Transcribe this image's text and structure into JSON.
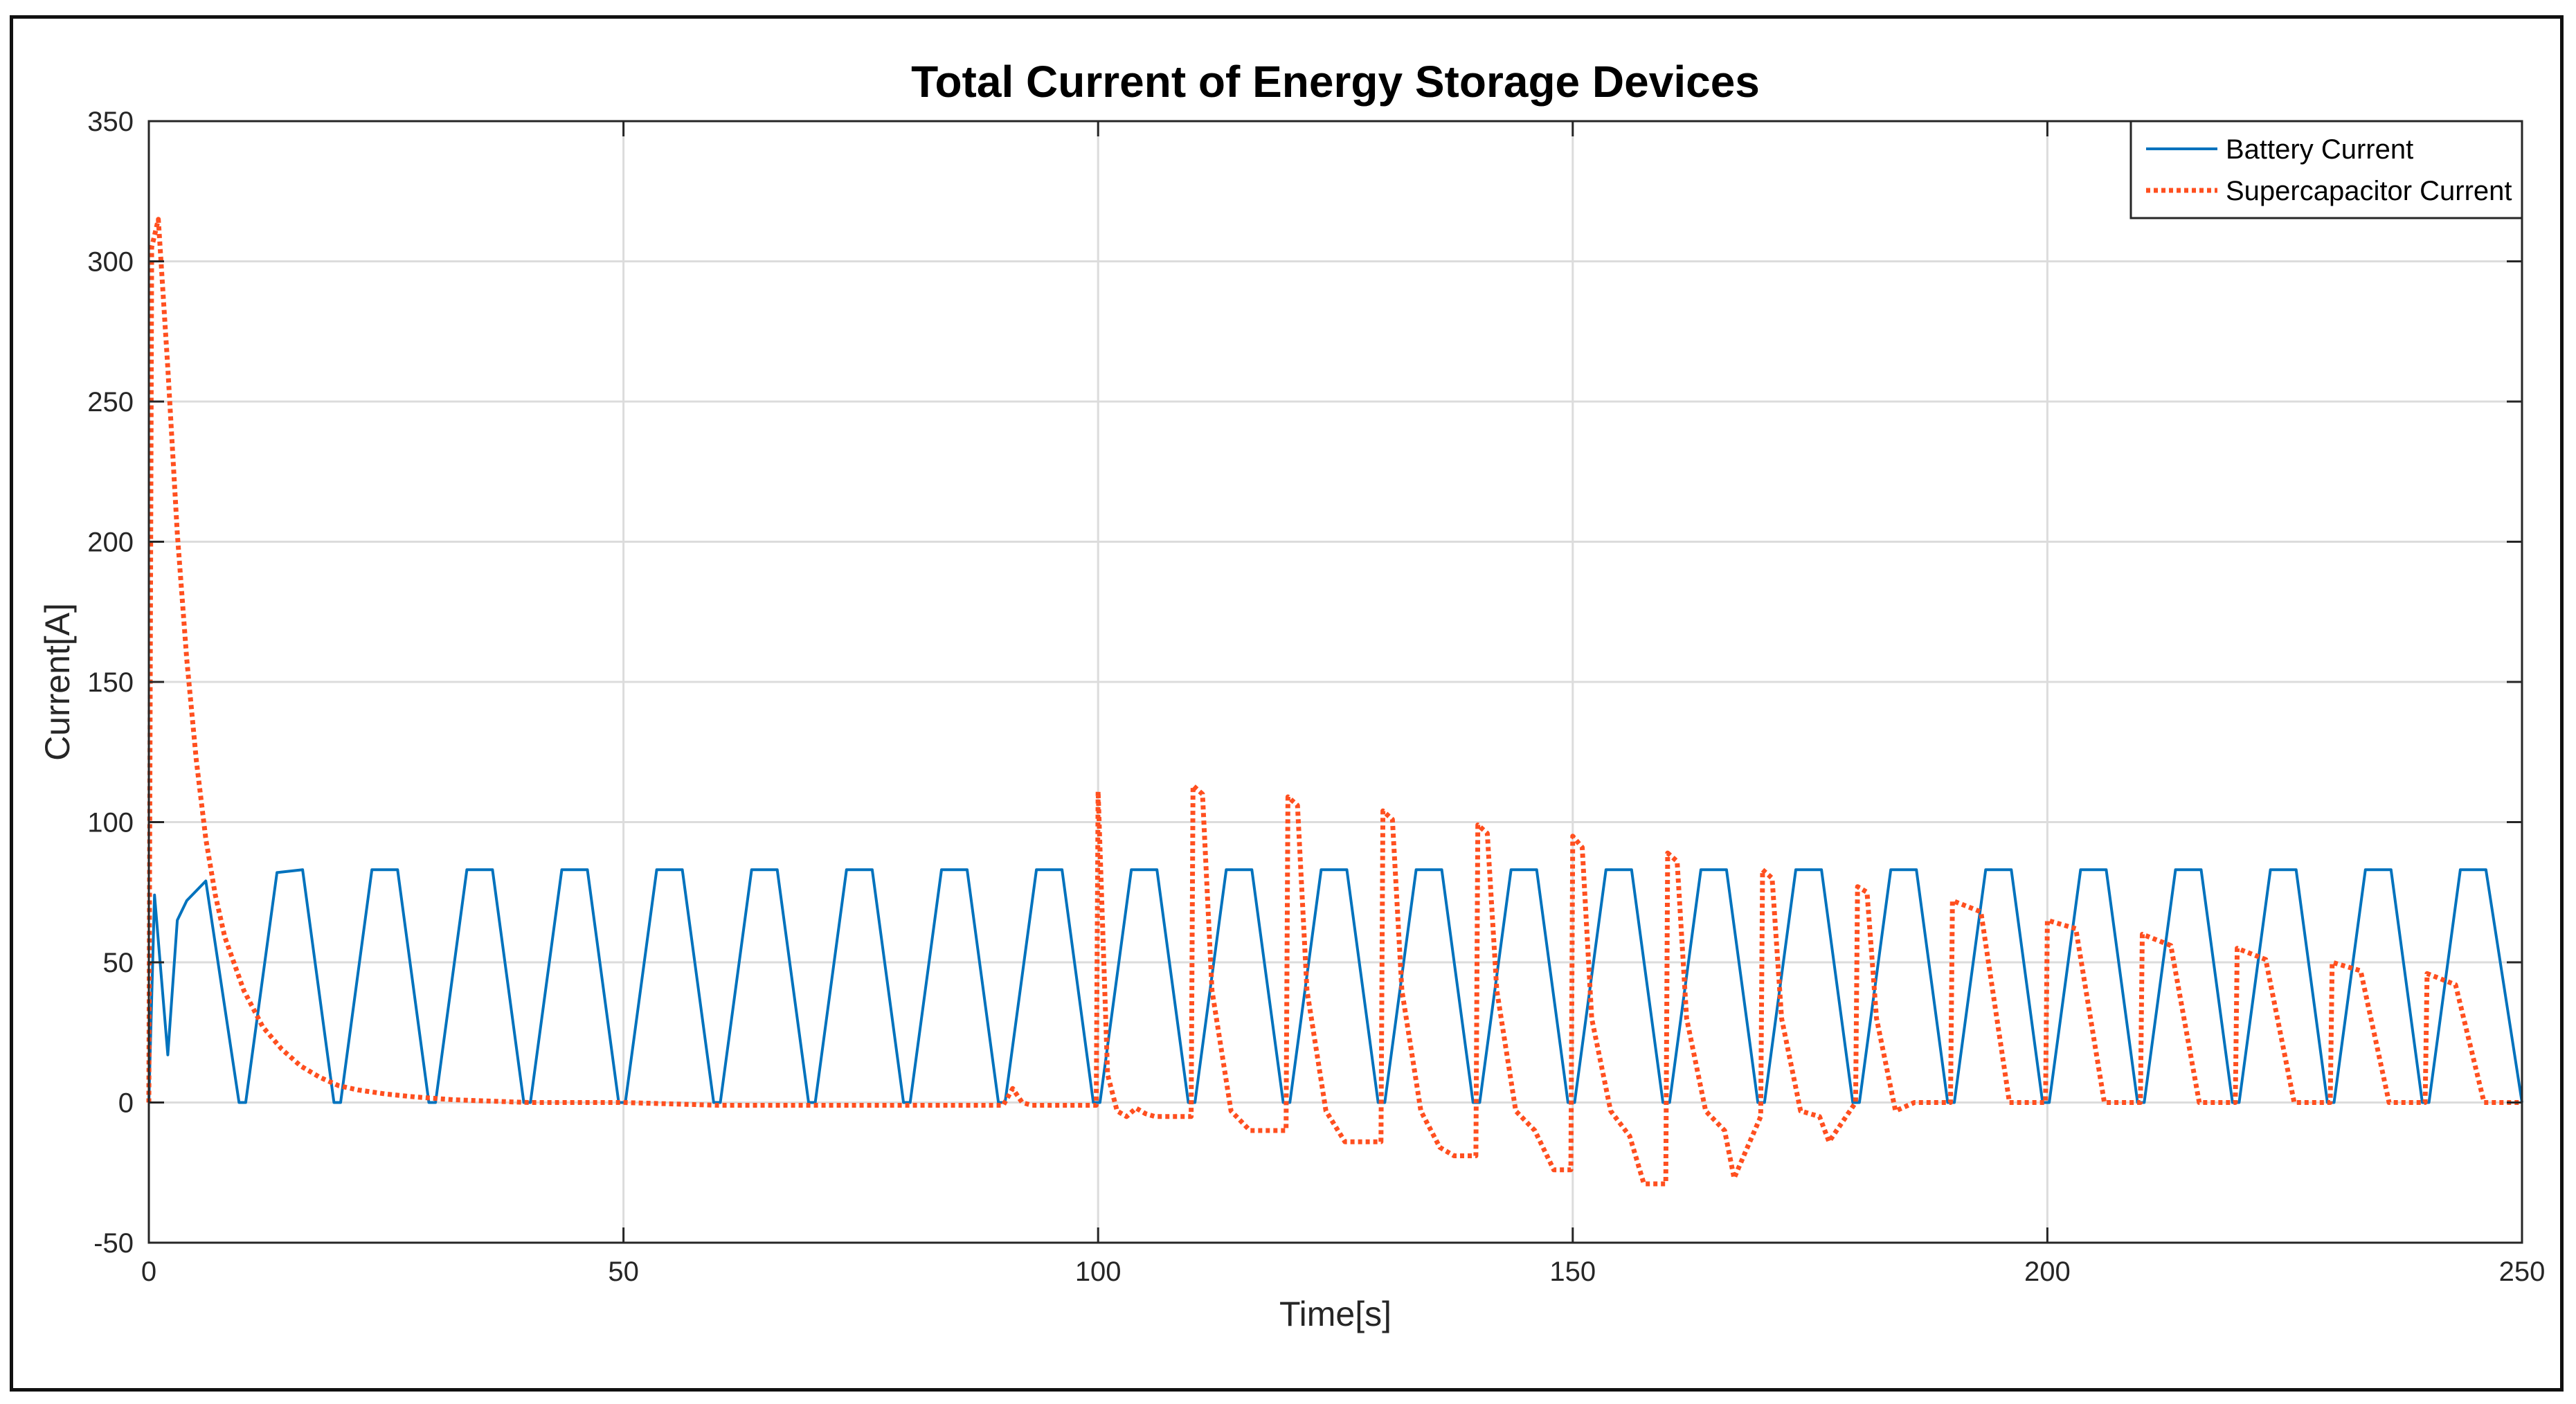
{
  "chart_data": {
    "type": "line",
    "title": "Total Current of Energy Storage Devices",
    "xlabel": "Time[s]",
    "ylabel": "Current[A]",
    "xlim": [
      0,
      250
    ],
    "ylim": [
      -50,
      350
    ],
    "xticks": [
      0,
      50,
      100,
      150,
      200,
      250
    ],
    "yticks": [
      -50,
      0,
      50,
      100,
      150,
      200,
      250,
      300,
      350
    ],
    "grid": true,
    "legend_position": "top-right",
    "colors": {
      "battery": "#0072BD",
      "supercap": "#FF4F1F",
      "axis": "#262626",
      "grid": "#dcdcdc"
    },
    "series": [
      {
        "name": "Battery Current",
        "style": "solid",
        "x": [
          0,
          0.6,
          2,
          3,
          4,
          6,
          9.5,
          10.2,
          13.5,
          16.2,
          19.5,
          20.2,
          23.5,
          26.2,
          29.5,
          30.2,
          33.5,
          36.2,
          39.5,
          40.2,
          43.5,
          46.2,
          49.5,
          50.2,
          53.5,
          56.2,
          59.5,
          60.2,
          63.5,
          66.2,
          69.5,
          70.2,
          73.5,
          76.2,
          79.5,
          80.2,
          83.5,
          86.2,
          89.5,
          90.2,
          93.5,
          96.2,
          99.5,
          100.2,
          103.5,
          106.2,
          109.5,
          110.2,
          113.5,
          116.2,
          119.5,
          120.2,
          123.5,
          126.2,
          129.5,
          130.2,
          133.5,
          136.2,
          139.5,
          140.2,
          143.5,
          146.2,
          149.5,
          150.2,
          153.5,
          156.2,
          159.5,
          160.2,
          163.5,
          166.2,
          169.5,
          170.2,
          173.5,
          176.2,
          179.5,
          180.2,
          183.5,
          186.2,
          189.5,
          190.2,
          193.5,
          196.2,
          199.5,
          200.2,
          203.5,
          206.2,
          209.5,
          210.2,
          213.5,
          216.2,
          219.5,
          220.2,
          223.5,
          226.2,
          229.5,
          230.2,
          233.5,
          236.2,
          239.5,
          240.2,
          243.5,
          246.2,
          250
        ],
        "y": [
          0,
          74,
          17,
          65,
          72,
          79,
          0,
          0,
          82,
          83,
          0,
          0,
          83,
          83,
          0,
          0,
          83,
          83,
          0,
          0,
          83,
          83,
          0,
          0,
          83,
          83,
          0,
          0,
          83,
          83,
          0,
          0,
          83,
          83,
          0,
          0,
          83,
          83,
          0,
          0,
          83,
          83,
          0,
          0,
          83,
          83,
          0,
          0,
          83,
          83,
          0,
          0,
          83,
          83,
          0,
          0,
          83,
          83,
          0,
          0,
          83,
          83,
          0,
          0,
          83,
          83,
          0,
          0,
          83,
          83,
          0,
          0,
          83,
          83,
          0,
          0,
          83,
          83,
          0,
          0,
          83,
          83,
          0,
          0,
          83,
          83,
          0,
          0,
          83,
          83,
          0,
          0,
          83,
          83,
          0,
          0,
          83,
          83,
          0,
          0,
          83,
          83,
          0
        ]
      },
      {
        "name": "Supercapacitor Current",
        "style": "dotted",
        "x": [
          0,
          0.3,
          1,
          2,
          3,
          4,
          5,
          6,
          7,
          8,
          10,
          12,
          14,
          16,
          18,
          20,
          22,
          25,
          28,
          32,
          36,
          40,
          50,
          60,
          70,
          80,
          90,
          91,
          92,
          93,
          99.8,
          100,
          100.5,
          101,
          102,
          103,
          104,
          105,
          106,
          109.8,
          110,
          111,
          112,
          114,
          116,
          119.8,
          120,
          121,
          122,
          124,
          126,
          129.8,
          130,
          131,
          132,
          134,
          136,
          137.5,
          139.8,
          140,
          141,
          142,
          144,
          146,
          148,
          149.8,
          150,
          151,
          152,
          154,
          156,
          157.5,
          159.8,
          160,
          161,
          162,
          164,
          166,
          167,
          169.8,
          170,
          171,
          172,
          174,
          176,
          177,
          179.8,
          180,
          181,
          182,
          184,
          186,
          189.8,
          190,
          193,
          196,
          199.8,
          200,
          203,
          206,
          209.8,
          210,
          213,
          216,
          219.8,
          220,
          223,
          226,
          229.8,
          230,
          233,
          236,
          239.8,
          240,
          243,
          246,
          250
        ],
        "y": [
          0,
          305,
          315,
          262,
          203,
          158,
          122,
          94,
          74,
          59,
          40,
          27,
          19,
          13,
          9,
          6,
          4.5,
          3,
          2,
          1,
          0.5,
          0,
          0,
          -1,
          -1,
          -1,
          -1,
          5,
          0,
          -1,
          -1,
          111,
          60,
          10,
          -3,
          -5,
          -2,
          -4,
          -5,
          -5,
          113,
          110,
          40,
          -3,
          -10,
          -10,
          109,
          106,
          40,
          -3,
          -14,
          -14,
          104,
          101,
          40,
          -3,
          -16,
          -19,
          -19,
          99,
          96,
          40,
          -3,
          -10,
          -24,
          -24,
          95,
          91,
          30,
          -3,
          -12,
          -29,
          -29,
          89,
          86,
          30,
          -3,
          -10,
          -27,
          -5,
          83,
          80,
          30,
          -3,
          -5,
          -14,
          0,
          77,
          75,
          30,
          -3,
          0,
          0,
          72,
          68,
          0,
          0,
          65,
          62,
          0,
          0,
          60,
          56,
          0,
          0,
          55,
          51,
          0,
          0,
          50,
          47,
          0,
          0,
          46,
          42,
          0,
          0
        ]
      }
    ]
  }
}
